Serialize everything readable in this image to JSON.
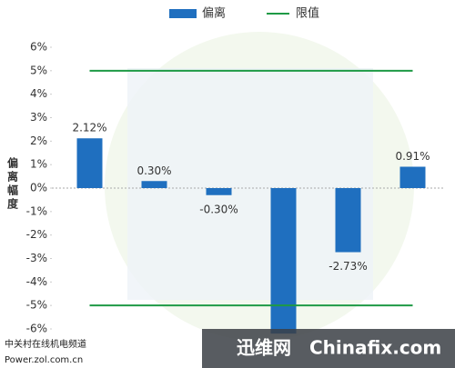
{
  "chart_data": {
    "type": "bar",
    "y_label": "偏离幅度",
    "categories": [
      null,
      null,
      null,
      null,
      null,
      null
    ],
    "series": [
      {
        "name": "偏离",
        "color": "#1f6fbf",
        "values": [
          2.12,
          0.3,
          -0.3,
          -6.2,
          -2.73,
          0.91
        ],
        "value_labels": [
          "2.12%",
          "0.30%",
          "-0.30%",
          null,
          "-2.73%",
          "0.91%"
        ]
      }
    ],
    "reference_lines": {
      "name": "限值",
      "color": "#1e9a45",
      "values": [
        5,
        -5
      ]
    },
    "ylim": [
      -6,
      6
    ],
    "yticks": [
      {
        "value": -6,
        "label": "-6%"
      },
      {
        "value": -5,
        "label": "-5%"
      },
      {
        "value": -4,
        "label": "-4%"
      },
      {
        "value": -3,
        "label": "-3%"
      },
      {
        "value": -2,
        "label": "-2%"
      },
      {
        "value": -1,
        "label": "-1%"
      },
      {
        "value": 0,
        "label": "0%"
      },
      {
        "value": 1,
        "label": "1%"
      },
      {
        "value": 2,
        "label": "2%"
      },
      {
        "value": 3,
        "label": "3%"
      },
      {
        "value": 4,
        "label": "4%"
      },
      {
        "value": 5,
        "label": "5%"
      },
      {
        "value": 6,
        "label": "6%"
      }
    ],
    "legend_position": "top",
    "watermarks": [
      "中关村在线机电频道",
      "Power.zol.com.cn",
      "迅维网",
      "Chinafix.com"
    ]
  }
}
